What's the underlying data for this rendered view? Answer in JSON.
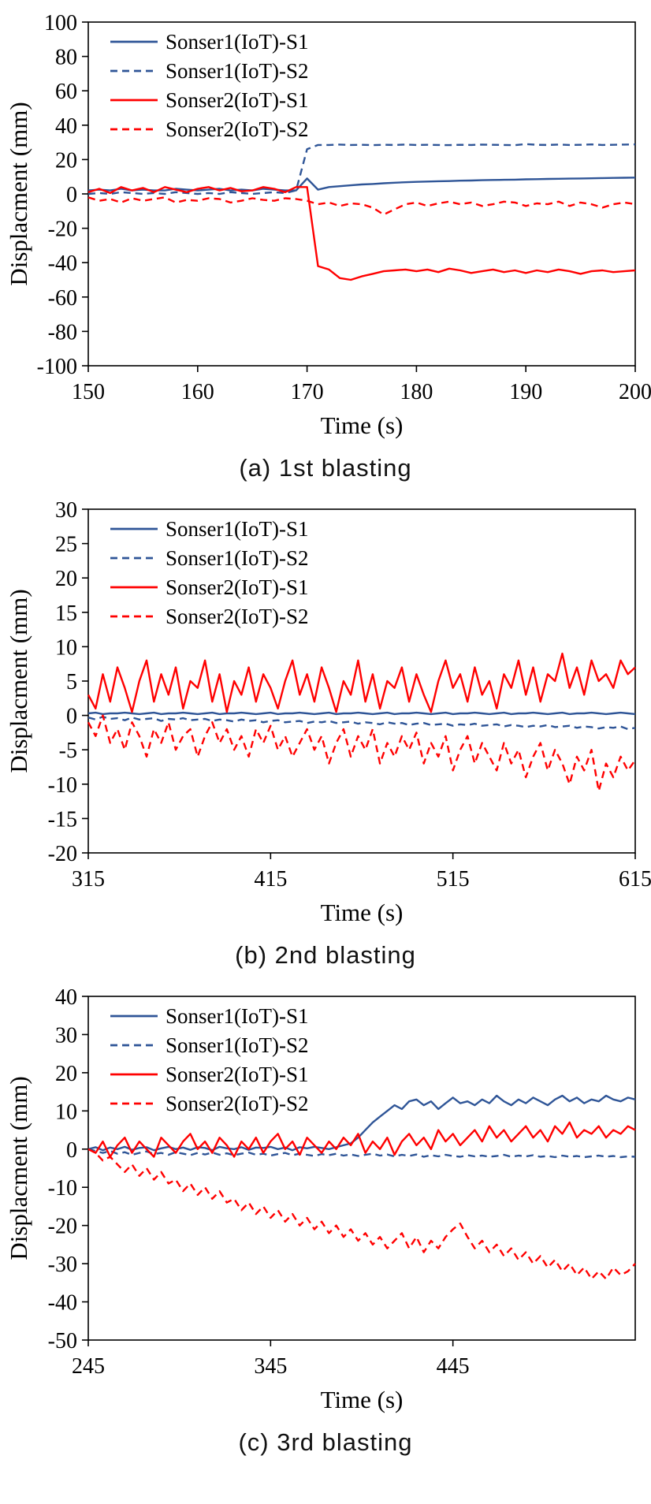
{
  "page": {
    "background": "#ffffff"
  },
  "colors": {
    "sonser1_blue": "#2f5597",
    "sonser2_red": "#ff0000",
    "axis": "#000000"
  },
  "chart_data": [
    {
      "type": "line",
      "caption": "(a) 1st blasting",
      "xlabel": "Time (s)",
      "ylabel": "Displacment (mm)",
      "xlim": [
        150,
        200
      ],
      "ylim": [
        -100,
        100
      ],
      "xticks": [
        150,
        160,
        170,
        180,
        190,
        200
      ],
      "yticks": [
        -100,
        -80,
        -60,
        -40,
        -20,
        0,
        20,
        40,
        60,
        80,
        100
      ],
      "grid": false,
      "legend_position": "top-left",
      "x_start": 150,
      "x_step": 1,
      "series": [
        {
          "name": "Sonser1(IoT)-S1",
          "color": "#2f5597",
          "dash": false,
          "values": [
            2,
            2.5,
            2,
            3,
            2,
            2.5,
            2,
            2,
            3,
            2.5,
            2,
            2.5,
            3,
            2,
            2.5,
            2,
            3,
            2.5,
            2,
            2,
            9,
            2.5,
            4,
            4.5,
            5,
            5.5,
            5.8,
            6.2,
            6.5,
            6.8,
            7,
            7.2,
            7.4,
            7.5,
            7.7,
            7.8,
            8,
            8.1,
            8.2,
            8.3,
            8.5,
            8.6,
            8.7,
            8.8,
            8.9,
            9,
            9.1,
            9.2,
            9.3,
            9.4,
            9.5
          ]
        },
        {
          "name": "Sonser1(IoT)-S2",
          "color": "#2f5597",
          "dash": true,
          "values": [
            0,
            0.5,
            0,
            1,
            0.5,
            0,
            0.5,
            0,
            1,
            0.5,
            0,
            0.5,
            0,
            1,
            0.5,
            0,
            0.5,
            1,
            0.5,
            2,
            26,
            28.5,
            28.5,
            28.7,
            28.5,
            28.6,
            28.4,
            28.6,
            28.5,
            28.7,
            28.5,
            28.6,
            28.5,
            28.4,
            28.6,
            28.5,
            28.7,
            28.6,
            28.5,
            28.4,
            29,
            28.6,
            28.5,
            28.7,
            28.5,
            28.6,
            28.8,
            28.5,
            28.6,
            28.7,
            28.8
          ]
        },
        {
          "name": "Sonser2(IoT)-S1",
          "color": "#ff0000",
          "dash": false,
          "values": [
            1,
            3,
            0.5,
            4,
            2,
            3.5,
            1,
            4,
            2.5,
            1,
            3,
            4,
            2,
            3.5,
            1.5,
            2,
            4,
            3,
            1,
            4,
            4,
            -42,
            -44,
            -49,
            -50,
            -48,
            -46.5,
            -45,
            -44.5,
            -44,
            -45,
            -44,
            -45.5,
            -43.5,
            -44.5,
            -46,
            -45,
            -44,
            -45.5,
            -44.5,
            -46,
            -44.5,
            -45.5,
            -44,
            -45,
            -46.5,
            -45,
            -44.5,
            -45.5,
            -45,
            -44.5
          ]
        },
        {
          "name": "Sonser2(IoT)-S2",
          "color": "#ff0000",
          "dash": true,
          "values": [
            -2,
            -4,
            -3,
            -5,
            -2.5,
            -4,
            -3,
            -2,
            -5,
            -3.5,
            -4,
            -2.5,
            -3,
            -5,
            -4,
            -2.5,
            -3.5,
            -4,
            -2.5,
            -3,
            -4,
            -6,
            -5,
            -7,
            -5.5,
            -6,
            -8,
            -12,
            -9,
            -6,
            -5,
            -7,
            -5.5,
            -4.5,
            -6,
            -5,
            -7,
            -6,
            -4.5,
            -5,
            -7,
            -5.5,
            -6,
            -4.5,
            -7,
            -5,
            -6,
            -8,
            -6,
            -5,
            -6
          ]
        }
      ]
    },
    {
      "type": "line",
      "caption": "(b) 2nd blasting",
      "xlabel": "Time (s)",
      "ylabel": "Displacment (mm)",
      "xlim": [
        315,
        615
      ],
      "ylim": [
        -20,
        30
      ],
      "xticks": [
        315,
        415,
        515,
        615
      ],
      "yticks": [
        -20,
        -15,
        -10,
        -5,
        0,
        5,
        10,
        15,
        20,
        25,
        30
      ],
      "grid": false,
      "legend_position": "top-left",
      "x_start": 315,
      "x_step": 4,
      "series": [
        {
          "name": "Sonser1(IoT)-S1",
          "color": "#2f5597",
          "dash": false,
          "values": [
            0.3,
            0.4,
            0.2,
            0.3,
            0.3,
            0.4,
            0.3,
            0.2,
            0.3,
            0.4,
            0.2,
            0.3,
            0.3,
            0.4,
            0.3,
            0.2,
            0.3,
            0.4,
            0.2,
            0.3,
            0.3,
            0.4,
            0.3,
            0.2,
            0.3,
            0.4,
            0.2,
            0.3,
            0.3,
            0.4,
            0.3,
            0.2,
            0.3,
            0.4,
            0.2,
            0.3,
            0.3,
            0.4,
            0.3,
            0.2,
            0.3,
            0.4,
            0.2,
            0.3,
            0.3,
            0.4,
            0.3,
            0.2,
            0.3,
            0.4,
            0.2,
            0.3,
            0.3,
            0.4,
            0.3,
            0.2,
            0.3,
            0.4,
            0.2,
            0.3,
            0.3,
            0.4,
            0.3,
            0.2,
            0.3,
            0.4,
            0.2,
            0.3,
            0.3,
            0.4,
            0.3,
            0.2,
            0.3,
            0.4,
            0.3,
            0.2
          ]
        },
        {
          "name": "Sonser1(IoT)-S2",
          "color": "#2f5597",
          "dash": true,
          "values": [
            -0.3,
            -0.6,
            -0.2,
            -0.5,
            -0.4,
            -0.7,
            -0.3,
            -0.6,
            -0.5,
            -0.4,
            -0.8,
            -0.5,
            -0.6,
            -0.4,
            -0.7,
            -0.6,
            -0.5,
            -0.8,
            -0.6,
            -0.7,
            -0.9,
            -0.6,
            -0.8,
            -0.7,
            -1.0,
            -0.8,
            -0.7,
            -1.0,
            -0.9,
            -0.8,
            -1.1,
            -0.9,
            -1.0,
            -0.8,
            -1.1,
            -1.0,
            -0.9,
            -1.2,
            -1.0,
            -1.1,
            -1.3,
            -1.0,
            -1.2,
            -1.1,
            -1.4,
            -1.2,
            -1.1,
            -1.4,
            -1.3,
            -1.2,
            -1.5,
            -1.3,
            -1.4,
            -1.2,
            -1.5,
            -1.4,
            -1.3,
            -1.6,
            -1.4,
            -1.5,
            -1.7,
            -1.5,
            -1.6,
            -1.4,
            -1.7,
            -1.6,
            -1.5,
            -1.8,
            -1.6,
            -1.7,
            -1.9,
            -1.7,
            -1.8,
            -1.6,
            -2.0,
            -1.8
          ]
        },
        {
          "name": "Sonser2(IoT)-S1",
          "color": "#ff0000",
          "dash": false,
          "values": [
            3,
            1,
            6,
            2,
            7,
            4,
            0.5,
            5,
            8,
            2,
            6,
            3,
            7,
            1,
            5,
            4,
            8,
            2,
            6,
            0.5,
            5,
            3,
            7,
            2,
            6,
            4,
            1,
            5,
            8,
            3,
            6,
            2,
            7,
            4,
            0.5,
            5,
            3,
            8,
            2,
            6,
            1,
            5,
            4,
            7,
            2,
            6,
            3,
            0.5,
            5,
            8,
            4,
            6,
            2,
            7,
            3,
            5,
            1,
            6,
            4,
            8,
            3,
            7,
            2,
            6,
            5,
            9,
            4,
            7,
            3,
            8,
            5,
            6,
            4,
            8,
            6,
            7
          ]
        },
        {
          "name": "Sonser2(IoT)-S2",
          "color": "#ff0000",
          "dash": true,
          "values": [
            -1,
            -3,
            0,
            -4,
            -2,
            -5,
            -1,
            -3,
            -6,
            -2,
            -4,
            -1,
            -5,
            -3,
            -2,
            -6,
            -3,
            -1,
            -4,
            -2,
            -5,
            -3,
            -6,
            -2,
            -4,
            -1.5,
            -5,
            -3,
            -6,
            -4,
            -2,
            -5,
            -3,
            -7,
            -4,
            -2,
            -6,
            -3,
            -5,
            -2,
            -7,
            -4,
            -6,
            -3,
            -5,
            -2.5,
            -7,
            -4,
            -6,
            -3,
            -8,
            -5,
            -3,
            -7,
            -4,
            -6,
            -8,
            -4,
            -7,
            -5,
            -9,
            -6,
            -4,
            -8,
            -5,
            -7,
            -10,
            -6,
            -8,
            -5,
            -11,
            -7,
            -9,
            -6,
            -8,
            -6.5
          ]
        }
      ]
    },
    {
      "type": "line",
      "caption": "(c) 3rd blasting",
      "xlabel": "Time (s)",
      "ylabel": "Displacment (mm)",
      "xlim": [
        245,
        545
      ],
      "ylim": [
        -50,
        40
      ],
      "xticks": [
        245,
        345,
        445
      ],
      "yticks": [
        -50,
        -40,
        -30,
        -20,
        -10,
        0,
        10,
        20,
        30,
        40
      ],
      "grid": false,
      "legend_position": "top-left",
      "x_start": 245,
      "x_step": 4,
      "series": [
        {
          "name": "Sonser1(IoT)-S1",
          "color": "#2f5597",
          "dash": false,
          "values": [
            0,
            0.5,
            -0.3,
            0.4,
            0,
            0.6,
            -0.2,
            0.3,
            0.5,
            -0.3,
            0.2,
            0.6,
            0,
            0.4,
            -0.2,
            0.5,
            0.3,
            -0.3,
            0.6,
            0.2,
            0,
            0.5,
            -0.2,
            0.4,
            0.3,
            0.6,
            0,
            0.4,
            -0.3,
            0.5,
            0.2,
            0.6,
            0.3,
            0,
            0.5,
            1,
            1.5,
            3,
            5,
            7,
            8.5,
            10,
            11.5,
            10.5,
            12.5,
            13,
            11.5,
            12.5,
            10.5,
            12,
            13.5,
            12,
            12.5,
            11.5,
            13,
            12,
            14,
            12.5,
            11.5,
            13,
            12,
            13.5,
            12.5,
            11.5,
            13,
            14,
            12.5,
            13.5,
            12,
            13,
            12.5,
            14,
            13,
            12.5,
            13.5,
            13
          ]
        },
        {
          "name": "Sonser1(IoT)-S2",
          "color": "#2f5597",
          "dash": true,
          "values": [
            0,
            -0.5,
            -1,
            -0.5,
            -1.2,
            -0.8,
            -1.5,
            -1,
            -0.6,
            -1.3,
            -1,
            -1.5,
            -0.8,
            -1.2,
            -1.6,
            -1,
            -1.4,
            -0.9,
            -1.5,
            -1.1,
            -1.6,
            -1.2,
            -0.9,
            -1.5,
            -1.2,
            -1.7,
            -1.3,
            -1,
            -1.6,
            -1.2,
            -1.5,
            -1.8,
            -1.3,
            -1.6,
            -1.2,
            -1.7,
            -1.4,
            -1.8,
            -1.5,
            -1.2,
            -1.7,
            -1.4,
            -1.9,
            -1.5,
            -1.8,
            -1.4,
            -2,
            -1.6,
            -1.9,
            -1.5,
            -1.8,
            -2,
            -1.6,
            -1.9,
            -1.7,
            -2,
            -1.8,
            -1.5,
            -2,
            -1.7,
            -1.9,
            -1.6,
            -2,
            -1.8,
            -2.1,
            -1.7,
            -2,
            -1.8,
            -2.1,
            -1.9,
            -1.7,
            -2,
            -1.8,
            -2.1,
            -1.9,
            -2
          ]
        },
        {
          "name": "Sonser2(IoT)-S1",
          "color": "#ff0000",
          "dash": false,
          "values": [
            0,
            -1,
            2,
            -2,
            1,
            3,
            -1,
            2,
            0,
            -2,
            3,
            1,
            -1,
            2,
            4,
            0,
            2,
            -1,
            3,
            1,
            -2,
            2,
            0,
            3,
            -1,
            2,
            4,
            0,
            2,
            -1.5,
            3,
            1,
            -1,
            2,
            0,
            3,
            1,
            4,
            -1,
            2,
            0,
            3,
            -1.5,
            2,
            4,
            1,
            3,
            0,
            5,
            2,
            4,
            1,
            3,
            5,
            2,
            6,
            3,
            5,
            2,
            4,
            6,
            3,
            5,
            2,
            6,
            4,
            7,
            3,
            5,
            4,
            6,
            3,
            5,
            4,
            6,
            5
          ]
        },
        {
          "name": "Sonser2(IoT)-S2",
          "color": "#ff0000",
          "dash": true,
          "values": [
            0,
            -1,
            -3,
            -2,
            -4,
            -6,
            -4,
            -7,
            -5,
            -8,
            -6,
            -9,
            -8,
            -11,
            -9,
            -12,
            -10,
            -13,
            -11,
            -14,
            -13,
            -16,
            -14,
            -17,
            -15,
            -18,
            -16,
            -19,
            -17,
            -20,
            -18,
            -21,
            -19,
            -22,
            -20,
            -23,
            -21,
            -24,
            -22,
            -25,
            -23,
            -26,
            -24,
            -22,
            -26,
            -23,
            -27,
            -24,
            -26,
            -23,
            -21,
            -19.5,
            -23,
            -26,
            -24,
            -27,
            -25,
            -28,
            -26,
            -29,
            -27,
            -30,
            -28,
            -31,
            -29,
            -32,
            -30,
            -33,
            -31,
            -34,
            -32,
            -34,
            -31,
            -33,
            -32,
            -30
          ]
        }
      ]
    }
  ]
}
